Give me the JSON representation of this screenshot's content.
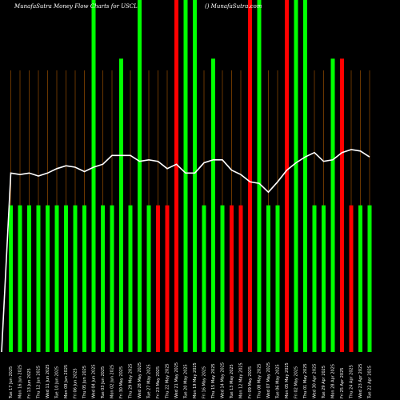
{
  "header": {
    "title_left": "MunafaSutra  Money Flow  Charts for USCL",
    "title_right": "() MunafaSutra.com"
  },
  "chart_data": {
    "type": "bar",
    "title": "MunafaSutra  Money Flow  Charts for USCL",
    "colors": {
      "up": "#00ff00",
      "down": "#ff0000",
      "grid": "#b05a00",
      "line": "#ffffff",
      "background": "#000000"
    },
    "categories": [
      "Tue 17 Jun 2025",
      "Mon 16 Jun 2025",
      "Fri 13 Jun 2025",
      "Thu 12 Jun 2025",
      "Wed 11 Jun 2025",
      "Tue 10 Jun 2025",
      "Mon 09 Jun 2025",
      "Fri 06 Jun 2025",
      "Thu 05 Jun 2025",
      "Wed 04 Jun 2025",
      "Tue 03 Jun 2025",
      "Mon 02 Jun 2025",
      "Fri 30 May 2025",
      "Thu 29 May 2025",
      "Wed 28 May 2025",
      "Tue 27 May 2025",
      "Fri 23 May 2025",
      "Thu 22 May 2025",
      "Wed 21 May 2025",
      "Tue 20 May 2025",
      "Mon 19 May 2025",
      "Fri 16 May 2025",
      "Thu 15 May 2025",
      "Wed 14 May 2025",
      "Tue 13 May 2025",
      "Mon 12 May 2025",
      "Fri 09 May 2025",
      "Thu 08 May 2025",
      "Wed 07 May 2025",
      "Tue 06 May 2025",
      "Mon 05 May 2025",
      "Fri 02 May 2025",
      "Thu 01 May 2025",
      "Wed 30 Apr 2025",
      "Tue 29 Apr 2025",
      "Mon 28 Apr 2025",
      "Fri 25 Apr 2025",
      "Thu 24 Apr 2025",
      "Wed 23 Apr 2025",
      "Tue 22 Apr 2025"
    ],
    "bar_colors": [
      "up",
      "up",
      "up",
      "up",
      "up",
      "up",
      "up",
      "up",
      "up",
      "up",
      "up",
      "up",
      "up",
      "up",
      "up",
      "up",
      "down",
      "down",
      "down",
      "up",
      "up",
      "up",
      "up",
      "up",
      "down",
      "down",
      "down",
      "up",
      "up",
      "up",
      "down",
      "up",
      "up",
      "up",
      "up",
      "up",
      "down",
      "down",
      "up",
      "up"
    ],
    "values": [
      1,
      1,
      1,
      1,
      1,
      1,
      1,
      1,
      1,
      2.4,
      1,
      1,
      2.0,
      1,
      2.4,
      1,
      1,
      1,
      2.4,
      2.4,
      2.4,
      1,
      2.0,
      1,
      1,
      1,
      2.4,
      2.4,
      1,
      1,
      2.4,
      2.4,
      2.4,
      1,
      1,
      2.0,
      2.0,
      1,
      1,
      1
    ],
    "line": [
      1.22,
      1.21,
      1.22,
      1.2,
      1.22,
      1.25,
      1.27,
      1.26,
      1.23,
      1.26,
      1.28,
      1.34,
      1.34,
      1.34,
      1.3,
      1.31,
      1.3,
      1.25,
      1.28,
      1.22,
      1.22,
      1.29,
      1.31,
      1.31,
      1.24,
      1.21,
      1.16,
      1.15,
      1.09,
      1.16,
      1.24,
      1.29,
      1.33,
      1.36,
      1.3,
      1.31,
      1.36,
      1.38,
      1.37,
      1.33
    ],
    "ylim": [
      0,
      2.4
    ],
    "grid": true,
    "legend": "none"
  }
}
